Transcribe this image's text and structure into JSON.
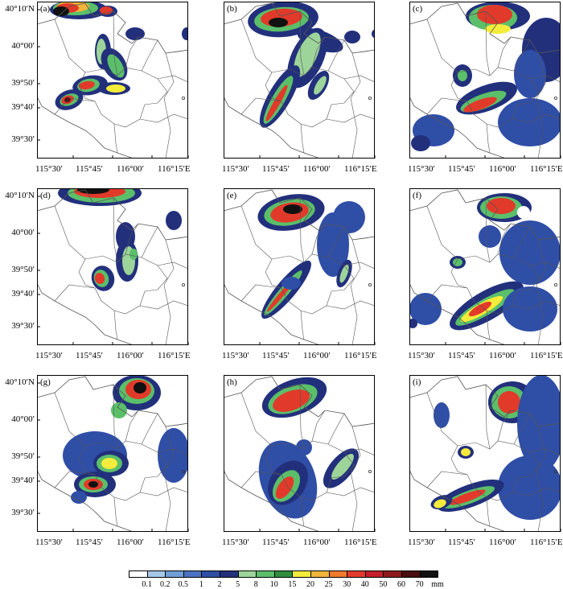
{
  "figure": {
    "x_tick_labels": [
      "115°30′",
      "115°45′",
      "116°00′",
      "116°15′E"
    ],
    "y_tick_labels": [
      "40°10′N",
      "40°00′",
      "39°50′",
      "39°40′",
      "39°30′"
    ],
    "panels": [
      {
        "id": "a",
        "letter": "(a)"
      },
      {
        "id": "b",
        "letter": "(b)"
      },
      {
        "id": "c",
        "letter": "(c)"
      },
      {
        "id": "d",
        "letter": "(d)"
      },
      {
        "id": "e",
        "letter": "(e)"
      },
      {
        "id": "f",
        "letter": "(f)"
      },
      {
        "id": "g",
        "letter": "(g)"
      },
      {
        "id": "h",
        "letter": "(h)"
      },
      {
        "id": "i",
        "letter": "(i)"
      }
    ]
  },
  "colorbar": {
    "unit": "mm",
    "levels": [
      "0.1",
      "0.2",
      "0.5",
      "1",
      "2",
      "5",
      "8",
      "10",
      "15",
      "20",
      "25",
      "30",
      "40",
      "50",
      "60",
      "70"
    ],
    "colors": [
      "#ffffff",
      "#a6c8e8",
      "#6f9fd6",
      "#4b72c2",
      "#2f4ea6",
      "#22307c",
      "#9dd49a",
      "#5bbf6a",
      "#2e8f3e",
      "#f4ec3a",
      "#f2b53a",
      "#ee7a2c",
      "#e23a2a",
      "#c41e2a",
      "#8e1a1e",
      "#4a0f0f",
      "#111111"
    ]
  }
}
